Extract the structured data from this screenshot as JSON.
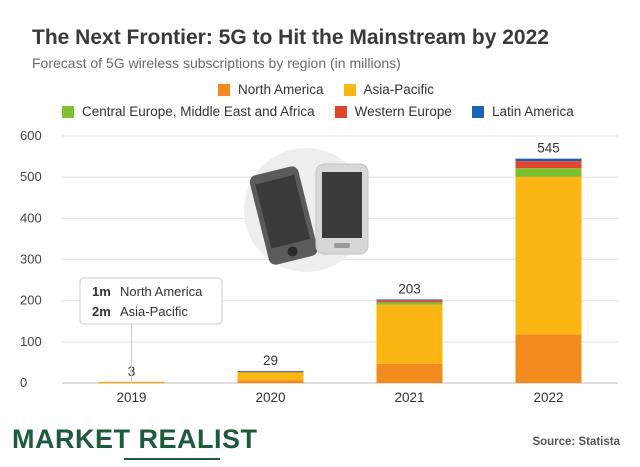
{
  "chart_data": {
    "type": "bar",
    "stacked": true,
    "title": "The Next Frontier: 5G to Hit the Mainstream by 2022",
    "subtitle": "Forecast of 5G wireless subscriptions by region (in millions)",
    "categories": [
      "2019",
      "2020",
      "2021",
      "2022"
    ],
    "ylim": [
      0,
      600
    ],
    "yticks": [
      0,
      100,
      200,
      300,
      400,
      500,
      600
    ],
    "grid": true,
    "legend_position": "top",
    "series": [
      {
        "name": "North America",
        "color": "#f28b1e",
        "values": [
          1,
          6,
          47,
          118
        ]
      },
      {
        "name": "Asia-Pacific",
        "color": "#fbb614",
        "values": [
          2,
          20,
          143,
          383
        ]
      },
      {
        "name": "Central Europe, Middle East and Africa",
        "color": "#7cbf2e",
        "values": [
          0,
          1,
          6,
          21
        ]
      },
      {
        "name": "Western Europe",
        "color": "#e2452f",
        "values": [
          0,
          1,
          5,
          17
        ]
      },
      {
        "name": "Latin America",
        "color": "#1e63b0",
        "values": [
          0,
          1,
          2,
          6
        ]
      }
    ],
    "totals": [
      "3",
      "29",
      "203",
      "545"
    ],
    "annotation": {
      "category": "2019",
      "lines": [
        {
          "value": "1m",
          "label": "North America"
        },
        {
          "value": "2m",
          "label": "Asia-Pacific"
        }
      ]
    }
  },
  "footer": {
    "logo_part1": "MARKET",
    "logo_part2": "REALIST",
    "source": "Source: Statista"
  },
  "colors": {
    "title": "#3a3a3a",
    "grid": "#e2e2e2",
    "brand": "#1e5a3c"
  }
}
